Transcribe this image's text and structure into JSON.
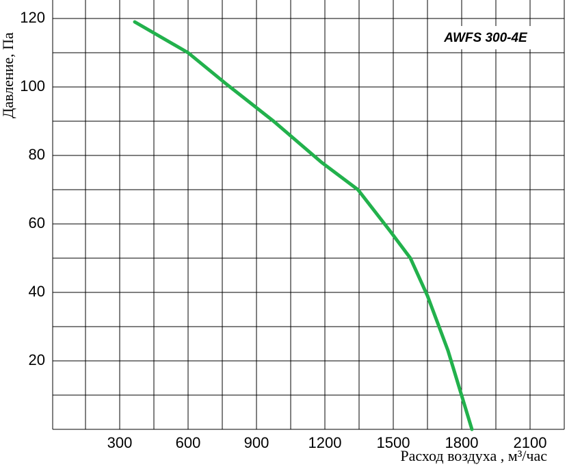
{
  "chart_data": {
    "type": "line",
    "title": "AWFS 300-4E",
    "x_label": "Расход воздуха , м³/час",
    "y_label": "Давление, Па",
    "xlim": [
      0,
      2250
    ],
    "ylim": [
      0,
      120
    ],
    "xticks": [
      300,
      600,
      900,
      1200,
      1500,
      1800,
      2100
    ],
    "x_minor_ticks": [
      150,
      450,
      750,
      1050,
      1350,
      1650,
      1950,
      2250
    ],
    "yticks": [
      20,
      40,
      60,
      80,
      100,
      120
    ],
    "y_minor_ticks": [
      10,
      30,
      50,
      70,
      90,
      110
    ],
    "grid": true,
    "series": [
      {
        "color": "#22b14c",
        "x": [
          366,
          600,
          765,
          975,
          1185,
          1345,
          1485,
          1575,
          1650,
          1740,
          1845
        ],
        "values": [
          119,
          110,
          101,
          90,
          78,
          70,
          58,
          50,
          39,
          23,
          0
        ]
      }
    ]
  }
}
